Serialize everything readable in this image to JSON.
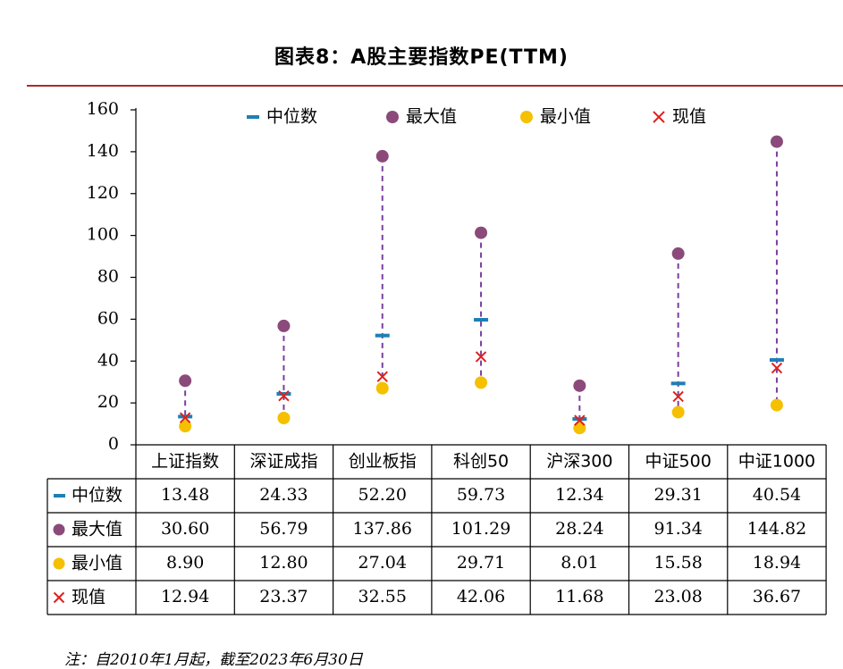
{
  "title": "图表8：A股主要指数PE(TTM)",
  "note": "注：自2010年1月起，截至2023年6月30日",
  "colors": {
    "median": "#1f7fb5",
    "max": "#8b4a7a",
    "min": "#f5c000",
    "current": "#e0201b",
    "dash": "#7a3fa0",
    "rule": "#b02a2a"
  },
  "chart_data": {
    "type": "scatter",
    "categories": [
      "上证指数",
      "深证成指",
      "创业板指",
      "科创50",
      "沪深300",
      "中证500",
      "中证1000"
    ],
    "series": [
      {
        "name": "中位数",
        "marker": "dash",
        "values": [
          13.48,
          24.33,
          52.2,
          59.73,
          12.34,
          29.31,
          40.54
        ],
        "labels": [
          "13.48",
          "24.33",
          "52.20",
          "59.73",
          "12.34",
          "29.31",
          "40.54"
        ]
      },
      {
        "name": "最大值",
        "marker": "circle",
        "values": [
          30.6,
          56.79,
          137.86,
          101.29,
          28.24,
          91.34,
          144.82
        ],
        "labels": [
          "30.60",
          "56.79",
          "137.86",
          "101.29",
          "28.24",
          "91.34",
          "144.82"
        ]
      },
      {
        "name": "最小值",
        "marker": "circle",
        "values": [
          8.9,
          12.8,
          27.04,
          29.71,
          8.01,
          15.58,
          18.94
        ],
        "labels": [
          "8.90",
          "12.80",
          "27.04",
          "29.71",
          "8.01",
          "15.58",
          "18.94"
        ]
      },
      {
        "name": "现值",
        "marker": "x",
        "values": [
          12.94,
          23.37,
          32.55,
          42.06,
          11.68,
          23.08,
          36.67
        ],
        "labels": [
          "12.94",
          "23.37",
          "32.55",
          "42.06",
          "11.68",
          "23.08",
          "36.67"
        ]
      }
    ],
    "yticks": [
      "0",
      "20",
      "40",
      "60",
      "80",
      "100",
      "120",
      "140",
      "160"
    ],
    "ylim": [
      0,
      160
    ],
    "legend": "top",
    "grid": false,
    "data_table": true
  }
}
